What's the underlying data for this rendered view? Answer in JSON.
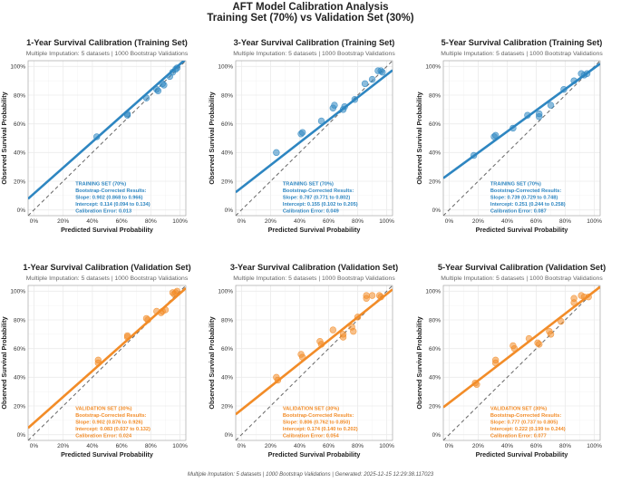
{
  "page": {
    "title": "AFT Model Calibration Analysis",
    "subtitle": "Training Set (70%) vs Validation Set (30%)",
    "footer": "Multiple Imputation: 5 datasets | 1000 Bootstrap Validations | Generated:  2025-12-15 12:29:38.117023"
  },
  "colors": {
    "training": "#2e86c1",
    "validation": "#f28c28",
    "reference_line": "#666666",
    "grid": "#ebebeb"
  },
  "chart_data": [
    {
      "type": "scatter",
      "set": "training",
      "title": "1-Year Survival Calibration (Training Set)",
      "subtitle": "Multiple Imputation: 5 datasets | 1000 Bootstrap Validations",
      "xlabel": "Predicted Survival Probability",
      "ylabel": "Observed Survival Probability",
      "xlim": [
        0,
        1
      ],
      "ylim": [
        0,
        1
      ],
      "xticks": [
        "0%",
        "20%",
        "40%",
        "60%",
        "80%",
        "100%"
      ],
      "yticks": [
        "0%",
        "20%",
        "40%",
        "60%",
        "80%",
        "100%"
      ],
      "fit": {
        "slope": 0.902,
        "intercept": 0.114
      },
      "points": [
        [
          0.43,
          0.51
        ],
        [
          0.64,
          0.67
        ],
        [
          0.64,
          0.66
        ],
        [
          0.77,
          0.78
        ],
        [
          0.84,
          0.84
        ],
        [
          0.85,
          0.83
        ],
        [
          0.88,
          0.88
        ],
        [
          0.89,
          0.87
        ],
        [
          0.93,
          0.93
        ],
        [
          0.95,
          0.96
        ],
        [
          0.97,
          0.98
        ],
        [
          0.98,
          0.99
        ]
      ],
      "annotation": [
        "TRAINING SET (70%)",
        "Bootstrap-Corrected Results:",
        "Slope: 0.902 (0.868 to 0.966)",
        "Intercept: 0.114 (0.094 to 0.134)",
        "Calibration Error: 0.013"
      ]
    },
    {
      "type": "scatter",
      "set": "training",
      "title": "3-Year Survival Calibration (Training Set)",
      "subtitle": "Multiple Imputation: 5 datasets | 1000 Bootstrap Validations",
      "xlabel": "Predicted Survival Probability",
      "ylabel": "Observed Survival Probability",
      "xlim": [
        0,
        1
      ],
      "ylim": [
        0,
        1
      ],
      "xticks": [
        "0%",
        "20%",
        "40%",
        "60%",
        "80%",
        "100%"
      ],
      "yticks": [
        "0%",
        "20%",
        "40%",
        "60%",
        "80%",
        "100%"
      ],
      "fit": {
        "slope": 0.787,
        "intercept": 0.155
      },
      "points": [
        [
          0.24,
          0.4
        ],
        [
          0.41,
          0.53
        ],
        [
          0.42,
          0.54
        ],
        [
          0.55,
          0.62
        ],
        [
          0.63,
          0.71
        ],
        [
          0.64,
          0.73
        ],
        [
          0.71,
          0.72
        ],
        [
          0.7,
          0.7
        ],
        [
          0.78,
          0.77
        ],
        [
          0.85,
          0.88
        ],
        [
          0.9,
          0.91
        ],
        [
          0.94,
          0.97
        ],
        [
          0.96,
          0.97
        ],
        [
          0.97,
          0.96
        ]
      ],
      "annotation": [
        "TRAINING SET (70%)",
        "Bootstrap-Corrected Results:",
        "Slope: 0.787 (0.771 to 0.802)",
        "Intercept: 0.155 (0.102 to 0.205)",
        "Calibration Error: 0.049"
      ]
    },
    {
      "type": "scatter",
      "set": "training",
      "title": "5-Year Survival Calibration (Training Set)",
      "subtitle": "Multiple Imputation: 5 datasets | 1000 Bootstrap Validations",
      "xlabel": "Predicted Survival Probability",
      "ylabel": "Observed Survival Probability",
      "xlim": [
        0,
        1
      ],
      "ylim": [
        0,
        1
      ],
      "xticks": [
        "0%",
        "20%",
        "40%",
        "60%",
        "80%",
        "100%"
      ],
      "yticks": [
        "0%",
        "20%",
        "40%",
        "60%",
        "80%",
        "100%"
      ],
      "fit": {
        "slope": 0.739,
        "intercept": 0.251
      },
      "points": [
        [
          0.17,
          0.38
        ],
        [
          0.31,
          0.51
        ],
        [
          0.32,
          0.52
        ],
        [
          0.44,
          0.57
        ],
        [
          0.54,
          0.66
        ],
        [
          0.62,
          0.67
        ],
        [
          0.62,
          0.65
        ],
        [
          0.7,
          0.73
        ],
        [
          0.79,
          0.84
        ],
        [
          0.86,
          0.9
        ],
        [
          0.91,
          0.95
        ],
        [
          0.93,
          0.94
        ],
        [
          0.95,
          0.95
        ]
      ],
      "annotation": [
        "TRAINING SET (70%)",
        "Bootstrap-Corrected Results:",
        "Slope: 0.739 (0.729 to 0.748)",
        "Intercept: 0.251 (0.244 to 0.258)",
        "Calibration Error: 0.087"
      ]
    },
    {
      "type": "scatter",
      "set": "validation",
      "title": "1-Year Survival Calibration (Validation Set)",
      "subtitle": "Multiple Imputation: 5 datasets | 1000 Bootstrap Validations",
      "xlabel": "Predicted Survival Probability",
      "ylabel": "Observed Survival Probability",
      "xlim": [
        0,
        1
      ],
      "ylim": [
        0,
        1
      ],
      "xticks": [
        "0%",
        "20%",
        "40%",
        "60%",
        "80%",
        "100%"
      ],
      "yticks": [
        "0%",
        "20%",
        "40%",
        "60%",
        "80%",
        "100%"
      ],
      "fit": {
        "slope": 0.902,
        "intercept": 0.083
      },
      "points": [
        [
          0.44,
          0.52
        ],
        [
          0.44,
          0.5
        ],
        [
          0.64,
          0.69
        ],
        [
          0.64,
          0.68
        ],
        [
          0.77,
          0.81
        ],
        [
          0.78,
          0.8
        ],
        [
          0.84,
          0.86
        ],
        [
          0.87,
          0.85
        ],
        [
          0.88,
          0.86
        ],
        [
          0.9,
          0.87
        ],
        [
          0.95,
          0.99
        ],
        [
          0.96,
          0.98
        ],
        [
          0.97,
          0.99
        ],
        [
          0.98,
          1.0
        ]
      ],
      "annotation": [
        "VALIDATION SET (30%)",
        "Bootstrap-Corrected Results:",
        "Slope: 0.902 (0.876 to 0.926)",
        "Intercept: 0.083 (0.037 to 0.132)",
        "Calibration Error: 0.024"
      ]
    },
    {
      "type": "scatter",
      "set": "validation",
      "title": "3-Year Survival Calibration (Validation Set)",
      "subtitle": "Multiple Imputation: 5 datasets | 1000 Bootstrap Validations",
      "xlabel": "Predicted Survival Probability",
      "ylabel": "Observed Survival Probability",
      "xlim": [
        0,
        1
      ],
      "ylim": [
        0,
        1
      ],
      "xticks": [
        "0%",
        "20%",
        "40%",
        "60%",
        "80%",
        "100%"
      ],
      "yticks": [
        "0%",
        "20%",
        "40%",
        "60%",
        "80%",
        "100%"
      ],
      "fit": {
        "slope": 0.806,
        "intercept": 0.174
      },
      "points": [
        [
          0.24,
          0.4
        ],
        [
          0.25,
          0.38
        ],
        [
          0.41,
          0.56
        ],
        [
          0.42,
          0.54
        ],
        [
          0.54,
          0.65
        ],
        [
          0.55,
          0.63
        ],
        [
          0.63,
          0.73
        ],
        [
          0.7,
          0.7
        ],
        [
          0.7,
          0.68
        ],
        [
          0.76,
          0.75
        ],
        [
          0.77,
          0.72
        ],
        [
          0.8,
          0.82
        ],
        [
          0.86,
          0.97
        ],
        [
          0.86,
          0.95
        ],
        [
          0.9,
          0.97
        ],
        [
          0.95,
          0.97
        ],
        [
          0.96,
          0.96
        ]
      ],
      "annotation": [
        "VALIDATION SET (30%)",
        "Bootstrap-Corrected Results:",
        "Slope: 0.806 (0.762 to 0.850)",
        "Intercept: 0.174 (0.140 to 0.202)",
        "Calibration Error: 0.054"
      ]
    },
    {
      "type": "scatter",
      "set": "validation",
      "title": "5-Year Survival Calibration (Validation Set)",
      "subtitle": "Multiple Imputation: 5 datasets | 1000 Bootstrap Validations",
      "xlabel": "Predicted Survival Probability",
      "ylabel": "Observed Survival Probability",
      "xlim": [
        0,
        1
      ],
      "ylim": [
        0,
        1
      ],
      "xticks": [
        "0%",
        "20%",
        "40%",
        "60%",
        "80%",
        "100%"
      ],
      "yticks": [
        "0%",
        "20%",
        "40%",
        "60%",
        "80%",
        "100%"
      ],
      "fit": {
        "slope": 0.777,
        "intercept": 0.222
      },
      "points": [
        [
          0.18,
          0.36
        ],
        [
          0.19,
          0.35
        ],
        [
          0.32,
          0.52
        ],
        [
          0.32,
          0.5
        ],
        [
          0.44,
          0.62
        ],
        [
          0.45,
          0.6
        ],
        [
          0.55,
          0.67
        ],
        [
          0.61,
          0.64
        ],
        [
          0.62,
          0.63
        ],
        [
          0.69,
          0.72
        ],
        [
          0.7,
          0.7
        ],
        [
          0.77,
          0.79
        ],
        [
          0.86,
          0.95
        ],
        [
          0.86,
          0.92
        ],
        [
          0.91,
          0.97
        ],
        [
          0.93,
          0.96
        ],
        [
          0.96,
          0.96
        ]
      ],
      "annotation": [
        "VALIDATION SET (30%)",
        "Bootstrap-Corrected Results:",
        "Slope: 0.777 (0.737 to 0.805)",
        "Intercept: 0.222 (0.199 to 0.244)",
        "Calibration Error: 0.077"
      ]
    }
  ]
}
